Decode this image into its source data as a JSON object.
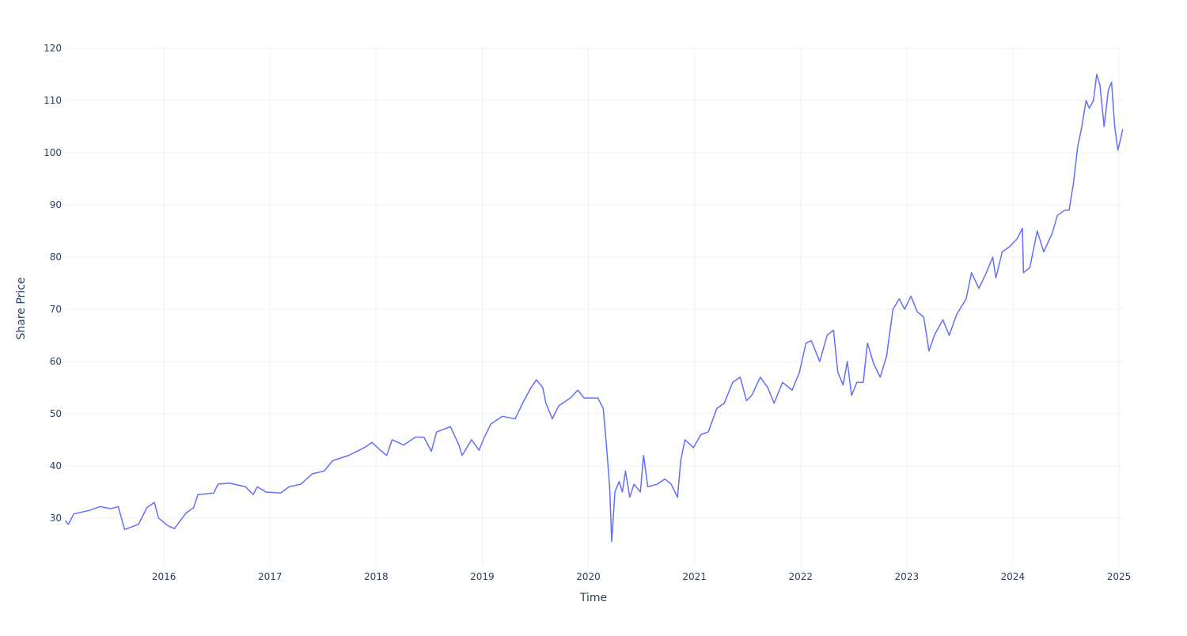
{
  "chart_data": {
    "type": "line",
    "x_label": "Time",
    "y_label": "Share Price",
    "xlim": [
      2015.067,
      2025.037
    ],
    "ylim": [
      20.9,
      120
    ],
    "xticks": [
      2016,
      2017,
      2018,
      2019,
      2020,
      2021,
      2022,
      2023,
      2024,
      2025
    ],
    "yticks": [
      30,
      40,
      50,
      60,
      70,
      80,
      90,
      100,
      110,
      120
    ],
    "grid": true,
    "series": [
      {
        "name": "Share Price",
        "color": "#636efa",
        "x": [
          2015.07,
          2015.1,
          2015.15,
          2015.3,
          2015.4,
          2015.5,
          2015.57,
          2015.63,
          2015.76,
          2015.84,
          2015.91,
          2015.95,
          2016.04,
          2016.1,
          2016.21,
          2016.28,
          2016.32,
          2016.47,
          2016.51,
          2016.62,
          2016.77,
          2016.84,
          2016.88,
          2016.96,
          2017.1,
          2017.18,
          2017.29,
          2017.4,
          2017.51,
          2017.59,
          2017.74,
          2017.89,
          2017.96,
          2018.04,
          2018.1,
          2018.15,
          2018.26,
          2018.37,
          2018.45,
          2018.52,
          2018.57,
          2018.7,
          2018.78,
          2018.81,
          2018.9,
          2018.97,
          2019.02,
          2019.08,
          2019.19,
          2019.31,
          2019.38,
          2019.46,
          2019.51,
          2019.57,
          2019.6,
          2019.66,
          2019.72,
          2019.83,
          2019.9,
          2019.96,
          2020.09,
          2020.14,
          2020.17,
          2020.2,
          2020.22,
          2020.25,
          2020.29,
          2020.32,
          2020.35,
          2020.39,
          2020.43,
          2020.49,
          2020.52,
          2020.56,
          2020.65,
          2020.72,
          2020.78,
          2020.84,
          2020.87,
          2020.91,
          2020.99,
          2021.06,
          2021.13,
          2021.21,
          2021.28,
          2021.36,
          2021.43,
          2021.49,
          2021.54,
          2021.62,
          2021.69,
          2021.75,
          2021.83,
          2021.92,
          2021.99,
          2022.05,
          2022.1,
          2022.18,
          2022.25,
          2022.31,
          2022.35,
          2022.4,
          2022.44,
          2022.48,
          2022.53,
          2022.59,
          2022.63,
          2022.69,
          2022.75,
          2022.81,
          2022.87,
          2022.93,
          2022.98,
          2023.04,
          2023.1,
          2023.16,
          2023.21,
          2023.26,
          2023.34,
          2023.4,
          2023.47,
          2023.56,
          2023.61,
          2023.68,
          2023.75,
          2023.81,
          2023.84,
          2023.9,
          2023.97,
          2024.04,
          2024.09,
          2024.1,
          2024.16,
          2024.23,
          2024.29,
          2024.37,
          2024.42,
          2024.49,
          2024.53,
          2024.57,
          2024.61,
          2024.65,
          2024.69,
          2024.72,
          2024.76,
          2024.79,
          2024.82,
          2024.86,
          2024.9,
          2024.93,
          2024.96,
          2024.99,
          2025.02,
          2025.035
        ],
        "values": [
          29.5,
          28.8,
          30.8,
          31.5,
          32.2,
          31.8,
          32.2,
          27.8,
          28.8,
          32,
          33,
          30,
          28.5,
          28,
          31,
          32,
          34.5,
          34.8,
          36.5,
          36.7,
          36,
          34.5,
          36,
          35,
          34.8,
          36,
          36.5,
          38.5,
          39,
          41,
          42,
          43.5,
          44.5,
          43,
          42,
          45,
          44,
          45.5,
          45.5,
          42.8,
          46.5,
          47.5,
          44,
          42,
          45,
          43,
          45.5,
          48,
          49.5,
          49,
          52,
          55,
          56.5,
          55,
          52,
          49,
          51.5,
          53,
          54.5,
          53,
          53,
          51,
          44,
          36,
          25.5,
          35,
          37,
          35,
          39,
          34,
          36.5,
          35,
          42,
          36,
          36.5,
          37.5,
          36.5,
          34,
          41,
          45,
          43.5,
          46,
          46.5,
          51,
          52,
          56,
          57,
          52.5,
          53.5,
          57,
          55,
          52,
          56,
          54.5,
          58,
          63.5,
          64,
          60,
          65,
          66,
          58,
          55.5,
          60,
          53.5,
          56,
          56,
          63.5,
          59.5,
          57,
          61,
          70,
          72,
          70,
          72.5,
          69.5,
          68.5,
          62,
          65,
          68,
          65,
          69,
          72,
          77,
          74,
          77,
          80,
          76,
          81,
          82,
          83.5,
          85.5,
          77,
          78,
          85,
          81,
          84.5,
          88,
          89,
          89,
          94,
          101,
          105,
          110,
          108.5,
          110,
          115,
          113,
          105,
          112,
          113.5,
          105,
          100.5,
          103,
          104.5
        ]
      }
    ]
  }
}
